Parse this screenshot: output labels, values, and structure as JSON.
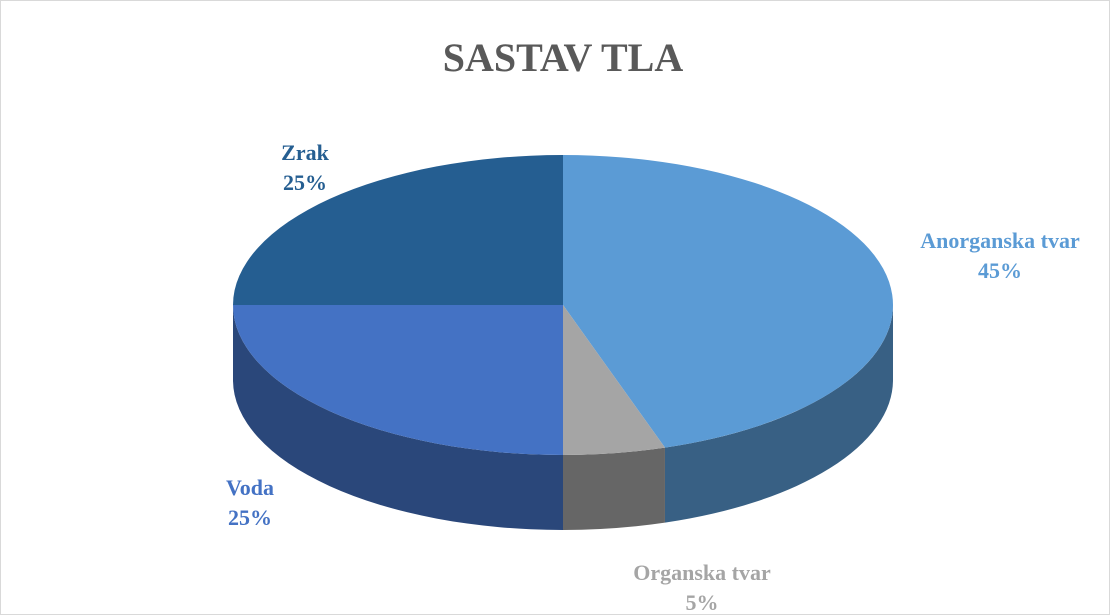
{
  "chart_data": {
    "type": "pie3d",
    "title": "SASTAV TLA",
    "categories": [
      "Anorganska tvar",
      "Organska tvar",
      "Voda",
      "Zrak"
    ],
    "values": [
      45,
      5,
      25,
      25
    ],
    "value_labels": [
      "45%",
      "5%",
      "25%",
      "25%"
    ],
    "colors": [
      "#5b9bd5",
      "#a5a5a5",
      "#4472c4",
      "#255e91"
    ]
  }
}
